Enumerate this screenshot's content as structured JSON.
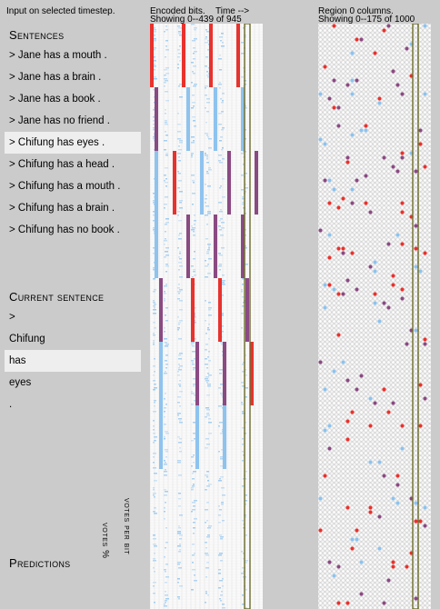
{
  "input_hint": "Input on selected timestep.",
  "encoded": {
    "title": "Encoded bits.",
    "time_label": "Time -->",
    "showing": "Showing 0--439 of 945"
  },
  "region": {
    "title": "Region 0 columns.",
    "showing": "Showing 0--175 of 1000"
  },
  "sentences": {
    "heading": "Sentences",
    "items": [
      "> Jane has a mouth .",
      "> Jane has a brain .",
      "> Jane has a book .",
      "> Jane has no friend .",
      "> Chifung has eyes .",
      "> Chifung has a head .",
      "> Chifung has a mouth .",
      "> Chifung has a brain .",
      "> Chifung has no book ."
    ],
    "selected_index": 4
  },
  "current_sentence": {
    "heading": "Current sentence",
    "tokens": [
      ">",
      "Chifung",
      "has",
      "eyes",
      "."
    ],
    "selected_index": 2
  },
  "predictions": {
    "heading": "Predictions",
    "votes_pct": "votes %",
    "votes_per_bit": "votes per bit"
  },
  "colors": {
    "red": "#e8322d",
    "purple": "#8a4a82",
    "blue": "#8ec3ee",
    "highlight": "#6b6b2b"
  }
}
